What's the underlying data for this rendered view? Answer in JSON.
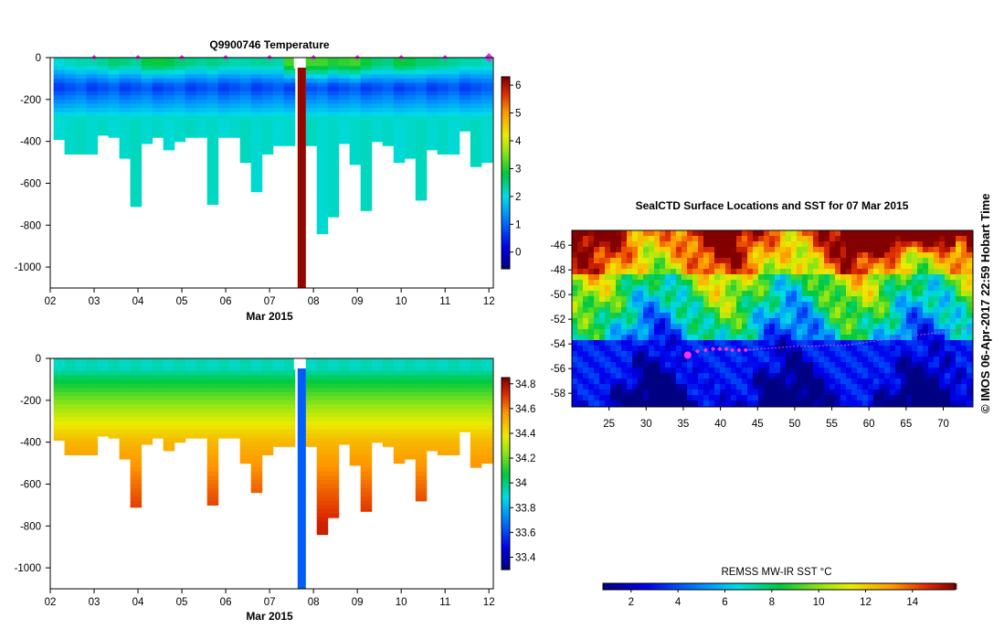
{
  "top_chart": {
    "title": "Q9900746  Temperature",
    "xlabel": "Mar 2015",
    "x_ticks": [
      "02",
      "03",
      "04",
      "05",
      "06",
      "07",
      "08",
      "09",
      "10",
      "11",
      "12"
    ],
    "y_ticks": [
      "0",
      "-200",
      "-400",
      "-600",
      "-800",
      "-1000"
    ],
    "colorbar_ticks": [
      "0",
      "1",
      "2",
      "3",
      "4",
      "5",
      "6"
    ],
    "chart_data": {
      "type": "heatmap",
      "variable": "Temperature",
      "x": "profile time (days in Mar 2015)",
      "y": "depth (m)",
      "ylim": [
        -1100,
        0
      ],
      "xlim": [
        2.0,
        12.1
      ],
      "clim": [
        -0.6,
        6.3
      ],
      "profile_times": [
        2.2,
        2.45,
        2.7,
        2.95,
        3.2,
        3.45,
        3.7,
        3.95,
        4.2,
        4.45,
        4.7,
        4.95,
        5.2,
        5.45,
        5.7,
        5.95,
        6.2,
        6.45,
        6.7,
        6.95,
        7.2,
        7.45,
        7.95,
        8.2,
        8.45,
        8.7,
        8.95,
        9.2,
        9.45,
        9.7,
        9.95,
        10.2,
        10.45,
        10.7,
        10.95,
        11.2,
        11.45,
        11.7,
        11.95
      ],
      "profile_max_depth_m": [
        -390,
        -460,
        -460,
        -460,
        -370,
        -380,
        -480,
        -710,
        -410,
        -380,
        -440,
        -400,
        -380,
        -380,
        -700,
        -380,
        -380,
        -500,
        -640,
        -460,
        -420,
        -420,
        -420,
        -840,
        -760,
        -410,
        -510,
        -730,
        -400,
        -420,
        -500,
        -480,
        -680,
        -440,
        -460,
        -460,
        -350,
        -520,
        -500
      ],
      "surface_temperature_c": [
        2.1,
        2.2,
        2.3,
        2.3,
        2.4,
        2.6,
        2.5,
        2.4,
        2.8,
        2.9,
        2.8,
        2.6,
        2.5,
        2.4,
        2.5,
        2.4,
        2.3,
        2.3,
        2.4,
        2.4,
        2.3,
        3.2,
        3.2,
        3.2,
        3.0,
        3.1,
        3.2,
        2.9,
        2.6,
        2.5,
        2.9,
        2.8,
        2.6,
        2.6,
        2.5,
        2.4,
        2.3,
        2.3,
        2.2
      ],
      "min_temperature_depth_m": -140,
      "min_temperature_c": 0.6,
      "deep_temperature_c": 2.1,
      "marker_profile": {
        "day": 7.7,
        "value_c": 6.2
      },
      "surface_markers_days": [
        3.0,
        4.0,
        5.0,
        6.0,
        7.0,
        8.0,
        9.0,
        10.0,
        11.0,
        12.0
      ]
    }
  },
  "bottom_chart": {
    "xlabel": "Mar 2015",
    "x_ticks": [
      "02",
      "03",
      "04",
      "05",
      "06",
      "07",
      "08",
      "09",
      "10",
      "11",
      "12"
    ],
    "y_ticks": [
      "0",
      "-200",
      "-400",
      "-600",
      "-800",
      "-1000"
    ],
    "colorbar_ticks": [
      "33.4",
      "33.6",
      "33.8",
      "34",
      "34.2",
      "34.4",
      "34.6",
      "34.8"
    ],
    "chart_data": {
      "type": "heatmap",
      "variable": "Salinity",
      "x": "profile time (days in Mar 2015)",
      "y": "depth (m)",
      "ylim": [
        -1100,
        0
      ],
      "xlim": [
        2.0,
        12.1
      ],
      "clim": [
        33.3,
        34.85
      ],
      "profile_times": [
        2.2,
        2.45,
        2.7,
        2.95,
        3.2,
        3.45,
        3.7,
        3.95,
        4.2,
        4.45,
        4.7,
        4.95,
        5.2,
        5.45,
        5.7,
        5.95,
        6.2,
        6.45,
        6.7,
        6.95,
        7.2,
        7.45,
        7.95,
        8.2,
        8.45,
        8.7,
        8.95,
        9.2,
        9.45,
        9.7,
        9.95,
        10.2,
        10.45,
        10.7,
        10.95,
        11.2,
        11.45,
        11.7,
        11.95
      ],
      "profile_max_depth_m": [
        -390,
        -460,
        -460,
        -460,
        -370,
        -380,
        -480,
        -710,
        -410,
        -380,
        -440,
        -400,
        -380,
        -380,
        -700,
        -380,
        -380,
        -500,
        -640,
        -460,
        -420,
        -420,
        -420,
        -840,
        -760,
        -410,
        -510,
        -730,
        -400,
        -420,
        -500,
        -480,
        -680,
        -440,
        -460,
        -460,
        -350,
        -520,
        -500
      ],
      "surface_salinity": 33.95,
      "salinity_at_400m": 34.5,
      "salinity_at_800m": 34.75,
      "marker_profile": {
        "day": 7.7,
        "value": 33.65
      }
    }
  },
  "map": {
    "title": "SealCTD Surface Locations and SST for 07 Mar 2015",
    "x_ticks": [
      "25",
      "30",
      "35",
      "40",
      "45",
      "50",
      "55",
      "60",
      "65",
      "70"
    ],
    "y_ticks": [
      "-46",
      "-48",
      "-50",
      "-52",
      "-54",
      "-56",
      "-58"
    ],
    "chart_data": {
      "type": "heatmap",
      "variable": "SST",
      "lon_range": [
        20,
        74
      ],
      "lat_range": [
        -59.1,
        -44.8
      ],
      "track_points": [
        {
          "lon": 35.6,
          "lat": -54.9,
          "current": true
        },
        {
          "lon": 36.9,
          "lat": -54.6
        },
        {
          "lon": 38.0,
          "lat": -54.5
        },
        {
          "lon": 39.0,
          "lat": -54.4
        },
        {
          "lon": 39.9,
          "lat": -54.4
        },
        {
          "lon": 40.8,
          "lat": -54.4
        },
        {
          "lon": 41.6,
          "lat": -54.5
        },
        {
          "lon": 42.5,
          "lat": -54.5
        },
        {
          "lon": 43.4,
          "lat": -54.5
        }
      ],
      "track_trail": [
        [
          43.4,
          -54.5
        ],
        [
          50,
          -54.2
        ],
        [
          57,
          -54.1
        ],
        [
          64,
          -53.5
        ],
        [
          70,
          -53.0
        ],
        [
          74,
          -52.7
        ]
      ]
    }
  },
  "colorbar": {
    "label": "REMSS MW-IR SST °C",
    "ticks": [
      "2",
      "4",
      "6",
      "8",
      "10",
      "12",
      "14"
    ],
    "range": [
      0.8,
      15.8
    ]
  },
  "credit": "© IMOS 06-Apr-2017 22:59 Hobart Time"
}
